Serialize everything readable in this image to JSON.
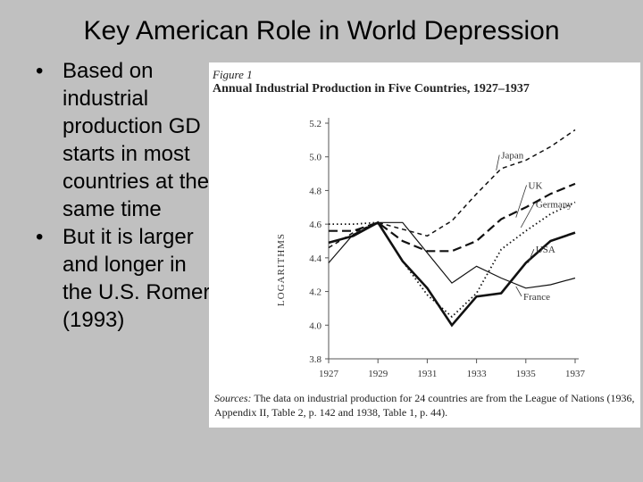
{
  "slide": {
    "title": "Key American Role in World Depression",
    "bullets": [
      "Based on industrial production GD starts in most countries at the same time",
      "But it is larger and longer in the U.S. Romer (1993)"
    ]
  },
  "figure": {
    "label": "Figure 1",
    "title": "Annual Industrial Production in Five Countries, 1927–1937",
    "source_label": "Sources:",
    "source_text": "The data on industrial production for 24 countries are from the League of Nations (1936, Appendix II, Table 2, p. 142 and 1938, Table 1, p. 44)."
  },
  "chart_data": {
    "type": "line",
    "title": "Annual Industrial Production in Five Countries, 1927–1937",
    "xlabel": "",
    "ylabel": "LOGARITHMS",
    "xlim": [
      1927,
      1937
    ],
    "ylim": [
      3.8,
      5.2
    ],
    "x_ticks": [
      "1927",
      "1929",
      "1931",
      "1933",
      "1935",
      "1937"
    ],
    "y_ticks": [
      "3.8",
      "4.0",
      "4.2",
      "4.4",
      "4.6",
      "4.8",
      "5.0",
      "5.2"
    ],
    "series": [
      {
        "name": "Japan",
        "style": "dashed-short",
        "x": [
          1927,
          1928,
          1929,
          1930,
          1931,
          1932,
          1933,
          1934,
          1935,
          1936,
          1937
        ],
        "y": [
          4.46,
          4.55,
          4.61,
          4.57,
          4.53,
          4.62,
          4.78,
          4.93,
          4.98,
          5.06,
          5.16
        ]
      },
      {
        "name": "UK",
        "style": "dashed-long",
        "x": [
          1927,
          1928,
          1929,
          1930,
          1931,
          1932,
          1933,
          1934,
          1935,
          1936,
          1937
        ],
        "y": [
          4.56,
          4.56,
          4.61,
          4.5,
          4.44,
          4.44,
          4.5,
          4.63,
          4.7,
          4.78,
          4.84
        ]
      },
      {
        "name": "Germany",
        "style": "dotted",
        "x": [
          1927,
          1928,
          1929,
          1930,
          1931,
          1932,
          1933,
          1934,
          1935,
          1936,
          1937
        ],
        "y": [
          4.6,
          4.6,
          4.61,
          4.38,
          4.18,
          4.05,
          4.19,
          4.45,
          4.56,
          4.66,
          4.73
        ]
      },
      {
        "name": "USA",
        "style": "solid-thick",
        "x": [
          1927,
          1928,
          1929,
          1930,
          1931,
          1932,
          1933,
          1934,
          1935,
          1936,
          1937
        ],
        "y": [
          4.49,
          4.53,
          4.61,
          4.38,
          4.22,
          4.0,
          4.17,
          4.19,
          4.37,
          4.5,
          4.55
        ]
      },
      {
        "name": "France",
        "style": "solid-thin",
        "x": [
          1927,
          1928,
          1929,
          1930,
          1931,
          1932,
          1933,
          1934,
          1935,
          1936,
          1937
        ],
        "y": [
          4.37,
          4.54,
          4.61,
          4.61,
          4.43,
          4.25,
          4.35,
          4.28,
          4.22,
          4.24,
          4.28
        ]
      }
    ],
    "annotations": [
      "Japan",
      "UK",
      "Germany",
      "USA",
      "France"
    ],
    "grid": false,
    "legend": "inline labels on right"
  }
}
